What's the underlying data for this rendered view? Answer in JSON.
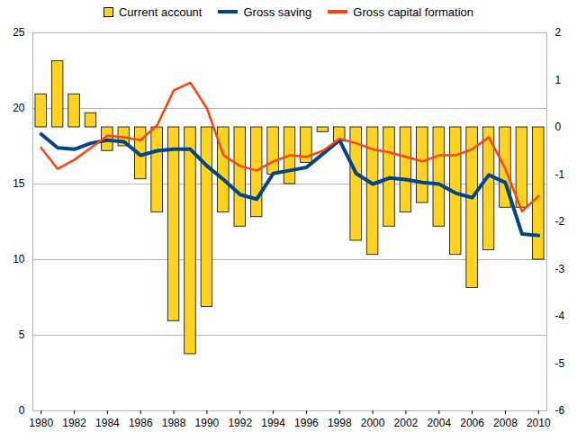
{
  "chart_data": {
    "type": "bar",
    "x": [
      1980,
      1981,
      1982,
      1983,
      1984,
      1985,
      1986,
      1987,
      1988,
      1989,
      1990,
      1991,
      1992,
      1993,
      1994,
      1995,
      1996,
      1997,
      1998,
      1999,
      2000,
      2001,
      2002,
      2003,
      2004,
      2005,
      2006,
      2007,
      2008,
      2009,
      2010
    ],
    "xlim": [
      1979.5,
      2010.5
    ],
    "xticks": [
      1980,
      1982,
      1984,
      1986,
      1988,
      1990,
      1992,
      1994,
      1996,
      1998,
      2000,
      2002,
      2004,
      2006,
      2008,
      2010
    ],
    "ylim": [
      0,
      25
    ],
    "yticks": [
      0,
      5,
      10,
      15,
      20,
      25
    ],
    "y2lim": [
      -6,
      2
    ],
    "y2ticks": [
      -6,
      -5,
      -4,
      -3,
      -2,
      -1,
      0,
      1,
      2
    ],
    "grid": true,
    "legend": "top",
    "series": [
      {
        "name": "Current account",
        "type": "bar",
        "axis": "y2",
        "color": "#ffd320",
        "values": [
          0.7,
          1.4,
          0.7,
          0.3,
          -0.5,
          -0.4,
          -1.1,
          -1.8,
          -4.1,
          -4.8,
          -3.8,
          -1.8,
          -2.1,
          -1.9,
          -1.0,
          -1.2,
          -0.75,
          -0.1,
          -0.3,
          -2.4,
          -2.7,
          -2.1,
          -1.8,
          -1.6,
          -2.1,
          -2.7,
          -3.4,
          -2.6,
          -1.7,
          -1.7,
          -2.8
        ]
      },
      {
        "name": "Gross saving",
        "type": "line",
        "color": "#004586",
        "values": [
          18.3,
          17.4,
          17.3,
          17.7,
          17.9,
          17.8,
          16.9,
          17.2,
          17.3,
          17.3,
          16.2,
          15.3,
          14.3,
          14.0,
          15.7,
          15.9,
          16.1,
          17.0,
          17.9,
          15.7,
          15.0,
          15.4,
          15.3,
          15.1,
          15.0,
          14.4,
          14.1,
          15.6,
          15.1,
          11.7,
          11.6
        ]
      },
      {
        "name": "Gross capital formation",
        "type": "line",
        "color": "#ff420e",
        "values": [
          17.4,
          16.0,
          16.6,
          17.4,
          18.2,
          18.1,
          17.9,
          18.9,
          21.2,
          21.7,
          20.0,
          16.9,
          16.2,
          15.9,
          16.5,
          16.9,
          16.8,
          17.2,
          18.0,
          17.7,
          17.3,
          17.1,
          16.8,
          16.5,
          16.9,
          16.9,
          17.3,
          18.1,
          16.0,
          13.2,
          14.2
        ]
      }
    ]
  }
}
